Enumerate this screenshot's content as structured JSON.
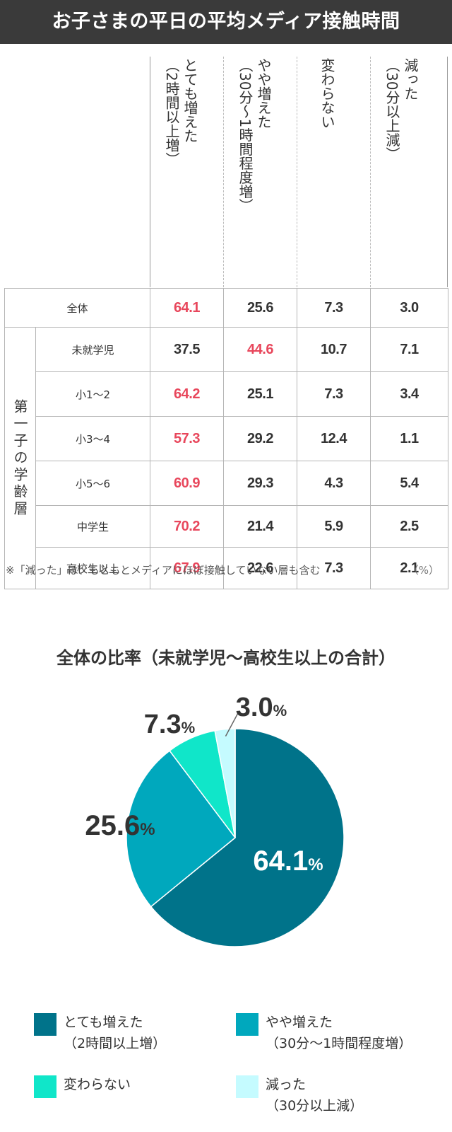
{
  "header": {
    "title": "お子さまの平日の平均メディア接触時間"
  },
  "colors": {
    "header_bg": "#3a3a3a",
    "highlight": "#e8475c",
    "series": [
      "#00738a",
      "#00a8bd",
      "#10e6c9",
      "#c5fbff"
    ]
  },
  "table": {
    "columns": [
      {
        "l1": "とても増えた",
        "l2": "（2時間以上増）"
      },
      {
        "l1": "やや増えた",
        "l2": "（30分〜1時間程度増）"
      },
      {
        "l1": "変わらない",
        "l2": ""
      },
      {
        "l1": "減った",
        "l2": "（30分以上減）"
      }
    ],
    "group_label": "第一子の学齢層",
    "rows": [
      {
        "label": "全体",
        "values": [
          "64.1",
          "25.6",
          "7.3",
          "3.0"
        ],
        "highlight": 0
      },
      {
        "label": "未就学児",
        "values": [
          "37.5",
          "44.6",
          "10.7",
          "7.1"
        ],
        "highlight": 1
      },
      {
        "label": "小1〜2",
        "values": [
          "64.2",
          "25.1",
          "7.3",
          "3.4"
        ],
        "highlight": 0
      },
      {
        "label": "小3〜4",
        "values": [
          "57.3",
          "29.2",
          "12.4",
          "1.1"
        ],
        "highlight": 0
      },
      {
        "label": "小5〜6",
        "values": [
          "60.9",
          "29.3",
          "4.3",
          "5.4"
        ],
        "highlight": 0
      },
      {
        "label": "中学生",
        "values": [
          "70.2",
          "21.4",
          "5.9",
          "2.5"
        ],
        "highlight": 0
      },
      {
        "label": "高校生以上",
        "values": [
          "67.9",
          "22.6",
          "7.3",
          "2.1"
        ],
        "highlight": 0
      }
    ],
    "note": "※「減った」は、もともとメディアにほぼ接触していない層も含む",
    "unit": "（%）"
  },
  "chart_data": {
    "type": "pie",
    "title": "全体の比率（未就学児〜高校生以上の合計）",
    "categories": [
      "とても増えた",
      "やや増えた",
      "変わらない",
      "減った"
    ],
    "values": [
      64.1,
      25.6,
      7.3,
      3.0
    ],
    "value_labels": [
      "64.1",
      "25.6",
      "7.3",
      "3.0"
    ],
    "percent_sign": "%",
    "colors": [
      "#00738a",
      "#00a8bd",
      "#10e6c9",
      "#c5fbff"
    ],
    "legend": [
      {
        "l1": "とても増えた",
        "l2": "（2時間以上増）"
      },
      {
        "l1": "やや増えた",
        "l2": "（30分〜1時間程度増）"
      },
      {
        "l1": "変わらない",
        "l2": ""
      },
      {
        "l1": "減った",
        "l2": "（30分以上減）"
      }
    ],
    "legend_position": "bottom"
  }
}
